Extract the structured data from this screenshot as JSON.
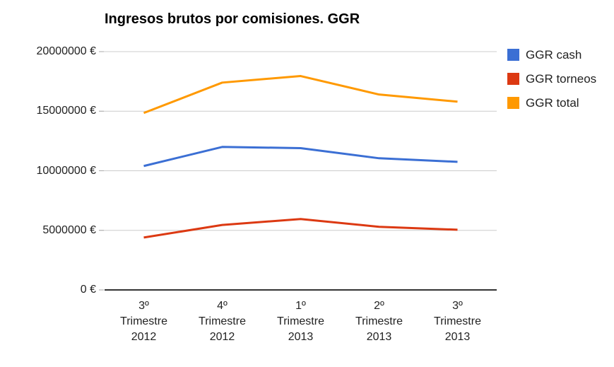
{
  "chart_data": {
    "type": "line",
    "title": "Ingresos brutos por comisiones. GGR",
    "categories": [
      [
        "3º",
        "Trimestre",
        "2012"
      ],
      [
        "4º",
        "Trimestre",
        "2012"
      ],
      [
        "1º",
        "Trimestre",
        "2013"
      ],
      [
        "2º",
        "Trimestre",
        "2013"
      ],
      [
        "3º",
        "Trimestre",
        "2013"
      ]
    ],
    "series": [
      {
        "name": "GGR cash",
        "color": "#3B6FD4",
        "values": [
          10400000,
          12000000,
          11900000,
          11050000,
          10750000
        ]
      },
      {
        "name": "GGR torneos",
        "color": "#DC3912",
        "values": [
          4400000,
          5450000,
          5950000,
          5300000,
          5050000
        ]
      },
      {
        "name": "GGR total",
        "color": "#FF9900",
        "values": [
          14850000,
          17400000,
          17950000,
          16400000,
          15800000
        ]
      }
    ],
    "y_axis": {
      "tick_values": [
        0,
        5000000,
        10000000,
        15000000,
        20000000
      ],
      "tick_labels": [
        "0 €",
        "5000000 €",
        "10000000 €",
        "15000000 €",
        "20000000 €"
      ]
    },
    "ylim": [
      0,
      20000000
    ],
    "xlabel": "",
    "ylabel": "",
    "grid": true,
    "legend_position": "right",
    "colors": {
      "gridline": "#CCCCCC",
      "baseline": "#333333",
      "axis_text": "#222222",
      "title_text": "#000000",
      "background": "#FFFFFF"
    }
  }
}
